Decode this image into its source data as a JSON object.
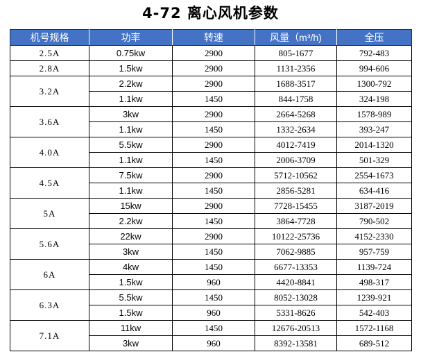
{
  "title": "4-72 离心风机参数",
  "colors": {
    "header_bg": "#4472C4",
    "header_text": "#FFFFFF",
    "header_border": "#17375E",
    "body_border": "#000000"
  },
  "table": {
    "columns": [
      {
        "key": "spec",
        "label": "机号规格"
      },
      {
        "key": "power",
        "label": "功率"
      },
      {
        "key": "speed",
        "label": "转速"
      },
      {
        "key": "airflow",
        "label": "风量（m³/h)"
      },
      {
        "key": "pressure",
        "label": "全压"
      }
    ],
    "groups": [
      {
        "spec": "2.5A",
        "rows": [
          {
            "power": "0.75kw",
            "speed": "2900",
            "airflow": "805-1677",
            "pressure": "792-483"
          }
        ]
      },
      {
        "spec": "2.8A",
        "rows": [
          {
            "power": "1.5kw",
            "speed": "2900",
            "airflow": "1131-2356",
            "pressure": "994-606"
          }
        ]
      },
      {
        "spec": "3.2A",
        "rows": [
          {
            "power": "2.2kw",
            "speed": "2900",
            "airflow": "1688-3517",
            "pressure": "1300-792"
          },
          {
            "power": "1.1kw",
            "speed": "1450",
            "airflow": "844-1758",
            "pressure": "324-198"
          }
        ]
      },
      {
        "spec": "3.6A",
        "rows": [
          {
            "power": "3kw",
            "speed": "2900",
            "airflow": "2664-5268",
            "pressure": "1578-989"
          },
          {
            "power": "1.1kw",
            "speed": "1450",
            "airflow": "1332-2634",
            "pressure": "393-247"
          }
        ]
      },
      {
        "spec": "4.0A",
        "rows": [
          {
            "power": "5.5kw",
            "speed": "2900",
            "airflow": "4012-7419",
            "pressure": "2014-1320"
          },
          {
            "power": "1.1kw",
            "speed": "1450",
            "airflow": "2006-3709",
            "pressure": "501-329"
          }
        ]
      },
      {
        "spec": "4.5A",
        "rows": [
          {
            "power": "7.5kw",
            "speed": "2900",
            "airflow": "5712-10562",
            "pressure": "2554-1673"
          },
          {
            "power": "1.1kw",
            "speed": "1450",
            "airflow": "2856-5281",
            "pressure": "634-416"
          }
        ]
      },
      {
        "spec": "5A",
        "rows": [
          {
            "power": "15kw",
            "speed": "2900",
            "airflow": "7728-15455",
            "pressure": "3187-2019"
          },
          {
            "power": "2.2kw",
            "speed": "1450",
            "airflow": "3864-7728",
            "pressure": "790-502"
          }
        ]
      },
      {
        "spec": "5.6A",
        "rows": [
          {
            "power": "22kw",
            "speed": "2900",
            "airflow": "10122-25736",
            "pressure": "4152-2330"
          },
          {
            "power": "3kw",
            "speed": "1450",
            "airflow": "7062-9885",
            "pressure": "957-759"
          }
        ]
      },
      {
        "spec": "6A",
        "rows": [
          {
            "power": "4kw",
            "speed": "1450",
            "airflow": "6677-13353",
            "pressure": "1139-724"
          },
          {
            "power": "1.5kw",
            "speed": "960",
            "airflow": "4420-8841",
            "pressure": "498-317"
          }
        ]
      },
      {
        "spec": "6.3A",
        "rows": [
          {
            "power": "5.5kw",
            "speed": "1450",
            "airflow": "8052-13028",
            "pressure": "1239-921"
          },
          {
            "power": "1.5kw",
            "speed": "960",
            "airflow": "5331-8626",
            "pressure": "542-403"
          }
        ]
      },
      {
        "spec": "7.1A",
        "rows": [
          {
            "power": "11kw",
            "speed": "1450",
            "airflow": "12676-20513",
            "pressure": "1572-1168"
          },
          {
            "power": "3kw",
            "speed": "960",
            "airflow": "8392-13581",
            "pressure": "689-512"
          }
        ]
      }
    ]
  }
}
